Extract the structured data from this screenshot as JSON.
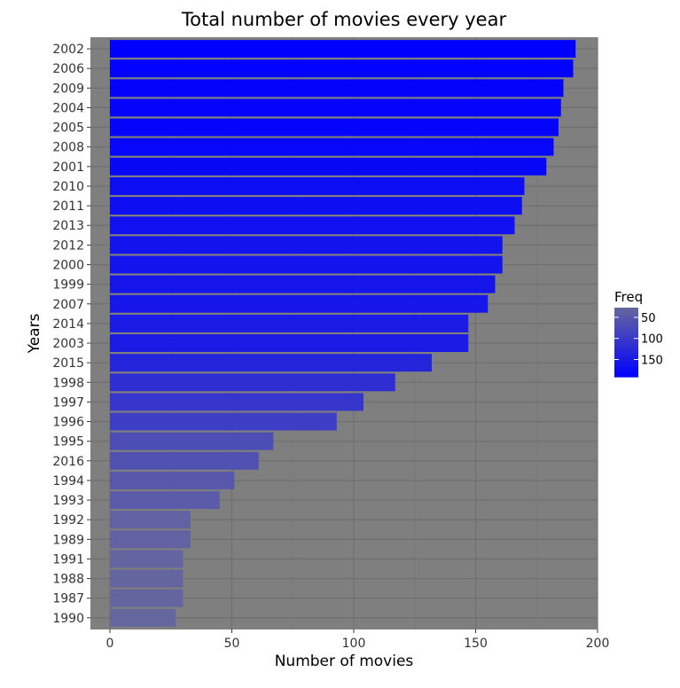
{
  "chart_data": {
    "type": "bar",
    "orientation": "horizontal",
    "title": "Total number of movies every year",
    "xlabel": "Number of movies",
    "ylabel": "Years",
    "xlim": [
      -8,
      200
    ],
    "x_ticks": [
      0,
      50,
      100,
      150,
      200
    ],
    "x_tick_labels": [
      "0",
      "50",
      "100",
      "150",
      "200"
    ],
    "grid": true,
    "colors": {
      "panel_background": "#7f7f7f",
      "grid_major": "#6e6e6e",
      "grid_minor": "#777777",
      "low": "#66669e",
      "high": "#0000ff"
    },
    "categories": [
      "2002",
      "2006",
      "2009",
      "2004",
      "2005",
      "2008",
      "2001",
      "2010",
      "2011",
      "2013",
      "2012",
      "2000",
      "1999",
      "2007",
      "2014",
      "2003",
      "2015",
      "1998",
      "1997",
      "1996",
      "1995",
      "2016",
      "1994",
      "1993",
      "1992",
      "1989",
      "1991",
      "1988",
      "1987",
      "1990"
    ],
    "values": [
      191,
      190,
      186,
      185,
      184,
      182,
      179,
      170,
      169,
      166,
      161,
      161,
      158,
      155,
      147,
      147,
      132,
      117,
      104,
      93,
      67,
      61,
      51,
      45,
      33,
      33,
      30,
      30,
      30,
      27
    ],
    "legend": {
      "title": "Freq",
      "position": "right",
      "breaks": [
        50,
        100,
        150
      ],
      "labels": [
        "50",
        "100",
        "150"
      ]
    }
  }
}
